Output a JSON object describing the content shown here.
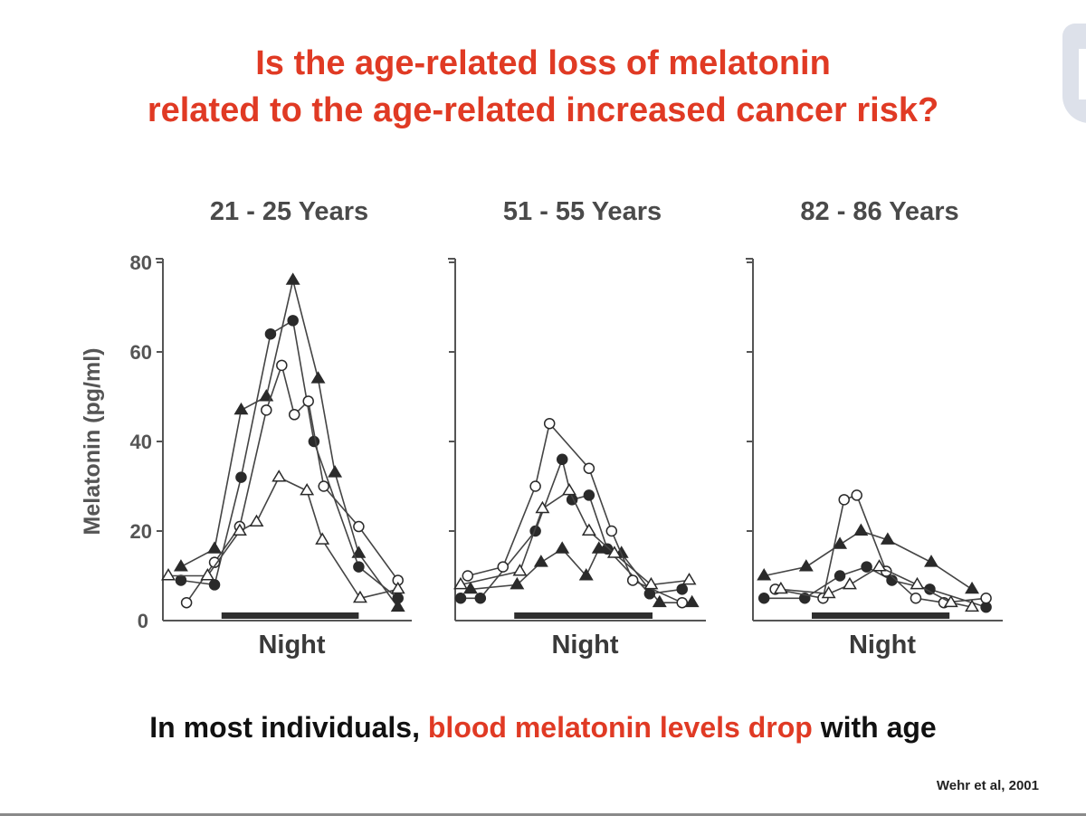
{
  "slide": {
    "title_line1": "Is the age-related loss of melatonin",
    "title_line2": "related to the age-related increased cancer risk?",
    "conclusion_prefix": "In most individuals, ",
    "conclusion_highlight": "blood melatonin levels drop",
    "conclusion_suffix": " with age",
    "citation": "Wehr et al, 2001",
    "accent_color": "#e03a24"
  },
  "chart_data": {
    "type": "line",
    "ylabel": "Melatonin (pg/ml)",
    "ylim": [
      0,
      80
    ],
    "yticks": [
      0,
      20,
      40,
      60,
      80
    ],
    "xlabel": "Night",
    "xlim": [
      0,
      17
    ],
    "night_period": [
      3.8,
      13.6
    ],
    "grid": false,
    "legend": "none",
    "marker_types": [
      "filled-triangle",
      "filled-circle",
      "open-circle",
      "open-triangle"
    ],
    "panels": [
      {
        "title": "21 - 25 Years",
        "series": [
          {
            "name": "subject-filled-triangle",
            "marker": "filled-triangle",
            "x": [
              0.9,
              3.3,
              5.2,
              7.0,
              8.9,
              10.7,
              11.9,
              13.6,
              16.4
            ],
            "y": [
              12,
              16,
              47,
              50,
              76,
              54,
              33,
              15,
              3
            ]
          },
          {
            "name": "subject-filled-circle",
            "marker": "filled-circle",
            "x": [
              0.9,
              3.3,
              5.2,
              7.3,
              8.9,
              10.4,
              13.6,
              16.4
            ],
            "y": [
              9,
              8,
              32,
              64,
              67,
              40,
              12,
              5
            ]
          },
          {
            "name": "subject-open-circle",
            "marker": "open-circle",
            "x": [
              1.3,
              3.3,
              5.1,
              7.0,
              8.1,
              9.0,
              10.0,
              11.1,
              13.6,
              16.4
            ],
            "y": [
              4,
              13,
              21,
              47,
              57,
              46,
              49,
              30,
              21,
              9
            ]
          },
          {
            "name": "subject-open-triangle",
            "marker": "open-triangle",
            "x": [
              0.0,
              2.8,
              5.1,
              6.3,
              7.9,
              9.9,
              11.0,
              13.7,
              16.4
            ],
            "y": [
              10,
              10,
              20,
              22,
              32,
              29,
              18,
              5,
              7
            ]
          }
        ]
      },
      {
        "title": "51 - 55 Years",
        "series": [
          {
            "name": "subject-filled-triangle",
            "marker": "filled-triangle",
            "x": [
              0.7,
              4.0,
              5.7,
              7.2,
              8.9,
              9.8,
              11.4,
              14.1,
              16.4
            ],
            "y": [
              7,
              8,
              13,
              16,
              10,
              16,
              15,
              4,
              4
            ]
          },
          {
            "name": "subject-filled-circle",
            "marker": "filled-circle",
            "x": [
              0.0,
              1.4,
              5.3,
              7.2,
              7.9,
              9.1,
              10.4,
              13.4,
              15.7
            ],
            "y": [
              5,
              5,
              20,
              36,
              27,
              28,
              16,
              6,
              7
            ]
          },
          {
            "name": "subject-open-circle",
            "marker": "open-circle",
            "x": [
              0.5,
              3.0,
              5.3,
              6.3,
              9.1,
              10.7,
              12.2,
              15.7
            ],
            "y": [
              10,
              12,
              30,
              44,
              34,
              20,
              9,
              4
            ]
          },
          {
            "name": "subject-open-triangle",
            "marker": "open-triangle",
            "x": [
              0.0,
              4.2,
              5.8,
              7.7,
              9.1,
              10.9,
              13.5,
              16.2
            ],
            "y": [
              8,
              11,
              25,
              29,
              20,
              15,
              8,
              9
            ]
          }
        ]
      },
      {
        "title": "82 - 86 Years",
        "series": [
          {
            "name": "subject-filled-triangle",
            "marker": "filled-triangle",
            "x": [
              0.4,
              3.4,
              5.8,
              7.3,
              9.2,
              12.3,
              15.2
            ],
            "y": [
              10,
              12,
              17,
              20,
              18,
              13,
              7
            ]
          },
          {
            "name": "subject-filled-circle",
            "marker": "filled-circle",
            "x": [
              0.4,
              3.3,
              5.8,
              7.7,
              9.5,
              12.2,
              16.2
            ],
            "y": [
              5,
              5,
              10,
              12,
              9,
              7,
              3
            ]
          },
          {
            "name": "subject-open-circle",
            "marker": "open-circle",
            "x": [
              1.2,
              4.6,
              6.1,
              7.0,
              9.1,
              11.2,
              13.2,
              16.2
            ],
            "y": [
              7,
              5,
              27,
              28,
              11,
              5,
              4,
              5
            ]
          },
          {
            "name": "subject-open-triangle",
            "marker": "open-triangle",
            "x": [
              1.6,
              5.0,
              6.5,
              8.6,
              11.3,
              13.7,
              15.2
            ],
            "y": [
              7,
              6,
              8,
              12,
              8,
              4,
              3
            ]
          }
        ]
      }
    ]
  }
}
